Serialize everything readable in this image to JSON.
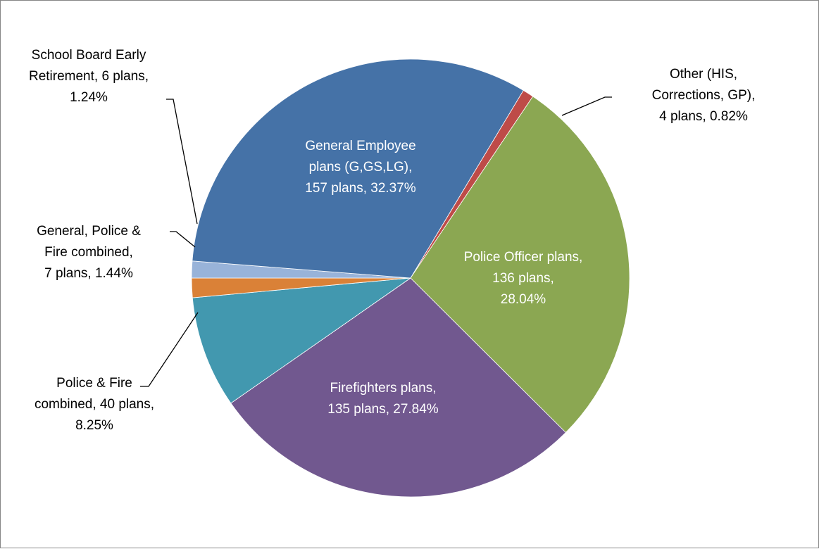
{
  "chart_data": {
    "type": "pie",
    "start_angle_deg": 31,
    "direction": "clockwise",
    "slices": [
      {
        "label_lines": [
          "Other (HIS,",
          "Corrections, GP),",
          "4 plans, 0.82%"
        ],
        "value": 0.82,
        "plans": 4,
        "color": "#BE4B48",
        "label_position": "outside"
      },
      {
        "label_lines": [
          "Police Officer plans,",
          "136 plans,",
          "28.04%"
        ],
        "value": 28.04,
        "plans": 136,
        "color": "#8BA752",
        "label_position": "inside"
      },
      {
        "label_lines": [
          "Firefighters plans,",
          "135 plans, 27.84%"
        ],
        "value": 27.84,
        "plans": 135,
        "color": "#71588F",
        "label_position": "inside"
      },
      {
        "label_lines": [
          "Police & Fire",
          "combined, 40 plans,",
          "8.25%"
        ],
        "value": 8.25,
        "plans": 40,
        "color": "#4298AF",
        "label_position": "outside"
      },
      {
        "label_lines": [
          "General, Police &",
          "Fire combined,",
          "7 plans, 1.44%"
        ],
        "value": 1.44,
        "plans": 7,
        "color": "#DA8137",
        "label_position": "outside"
      },
      {
        "label_lines": [
          "School Board Early",
          "Retirement, 6 plans,",
          "1.24%"
        ],
        "value": 1.24,
        "plans": 6,
        "color": "#98B3D9",
        "label_position": "outside"
      },
      {
        "label_lines": [
          "General Employee",
          "plans (G,GS,LG),",
          "157 plans, 32.37%"
        ],
        "value": 32.37,
        "plans": 157,
        "color": "#4572A7",
        "label_position": "inside"
      }
    ]
  }
}
